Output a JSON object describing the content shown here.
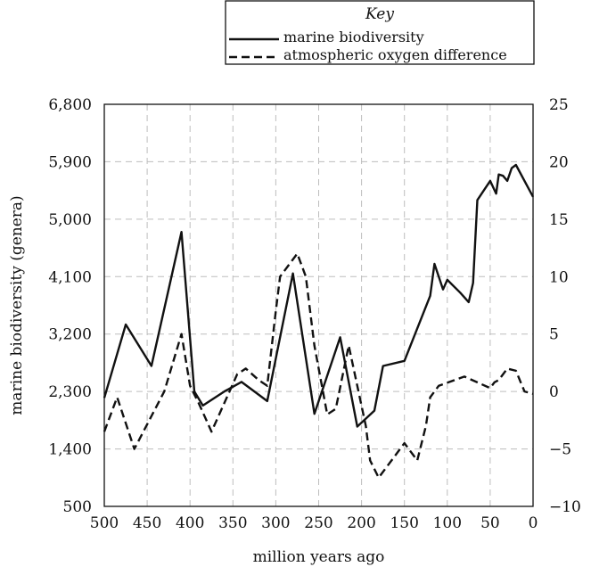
{
  "chart_data": {
    "type": "line",
    "title": "",
    "xlabel": "million years ago",
    "ylabel_left": "marine biodiversity (genera)",
    "ylabel_right": "",
    "xlim": [
      500,
      0
    ],
    "x_ticks": [
      "500",
      "450",
      "400",
      "350",
      "300",
      "250",
      "200",
      "150",
      "100",
      "50",
      "0"
    ],
    "x_tick_values": [
      500,
      450,
      400,
      350,
      300,
      250,
      200,
      150,
      100,
      50,
      0
    ],
    "ylim_left": [
      500,
      6800
    ],
    "y_ticks_left": [
      "500",
      "1,400",
      "2,300",
      "3,200",
      "4,100",
      "5,000",
      "5,900",
      "6,800"
    ],
    "y_tick_values_left": [
      500,
      1400,
      2300,
      3200,
      4100,
      5000,
      5900,
      6800
    ],
    "ylim_right": [
      -10,
      25
    ],
    "y_ticks_right": [
      "−10",
      "−5",
      "0",
      "5",
      "10",
      "15",
      "20",
      "25"
    ],
    "y_tick_values_right": [
      -10,
      -5,
      0,
      5,
      10,
      15,
      20,
      25
    ],
    "grid": true,
    "legend": {
      "title": "Key",
      "placement": "top-right",
      "entries": [
        "marine biodiversity",
        "atmospheric oxygen difference"
      ]
    },
    "series": [
      {
        "name": "marine biodiversity",
        "axis": "left",
        "style": "solid",
        "x": [
          500,
          475,
          445,
          410,
          395,
          385,
          360,
          340,
          310,
          280,
          255,
          225,
          205,
          185,
          175,
          150,
          120,
          115,
          105,
          100,
          85,
          75,
          70,
          65,
          55,
          50,
          43,
          40,
          35,
          30,
          25,
          20,
          0
        ],
        "y": [
          2200,
          3350,
          2700,
          4800,
          2300,
          2080,
          2300,
          2450,
          2150,
          4150,
          1950,
          3150,
          1750,
          2000,
          2700,
          2780,
          3800,
          4300,
          3900,
          4050,
          3850,
          3700,
          4000,
          5300,
          5500,
          5600,
          5400,
          5700,
          5680,
          5600,
          5800,
          5850,
          5350
        ]
      },
      {
        "name": "atmospheric oxygen difference",
        "axis": "right",
        "style": "dashed",
        "x": [
          500,
          485,
          465,
          430,
          410,
          400,
          390,
          375,
          360,
          345,
          335,
          320,
          310,
          300,
          295,
          280,
          275,
          265,
          255,
          240,
          230,
          215,
          205,
          195,
          190,
          180,
          150,
          140,
          135,
          125,
          120,
          110,
          80,
          50,
          45,
          40,
          30,
          20,
          10,
          0
        ],
        "y": [
          -3.5,
          -0.5,
          -5,
          0,
          5,
          0.5,
          -1,
          -3.5,
          -1,
          1.5,
          2,
          1,
          0.5,
          7,
          10,
          11.5,
          12,
          10,
          4,
          -2,
          -1.5,
          4,
          0.5,
          -3,
          -6,
          -7.5,
          -4.5,
          -5.5,
          -6,
          -3,
          -0.5,
          0.5,
          1.3,
          0.3,
          0.8,
          1,
          2,
          1.8,
          0,
          -0.2
        ]
      }
    ]
  }
}
